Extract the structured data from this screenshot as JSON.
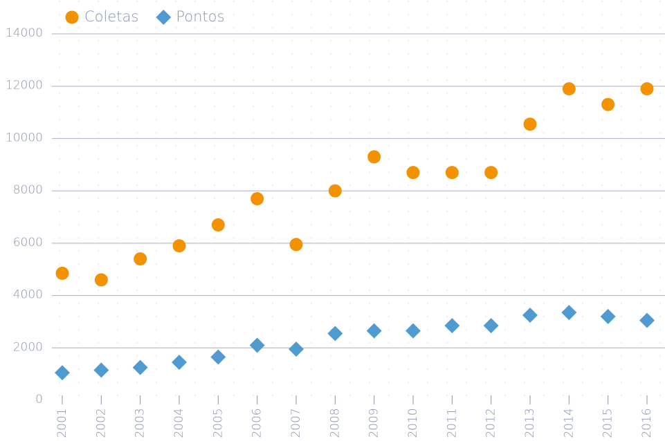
{
  "chart_data": {
    "type": "scatter",
    "categories": [
      "2001",
      "2002",
      "2003",
      "2004",
      "2005",
      "2006",
      "2007",
      "2008",
      "2009",
      "2010",
      "2011",
      "2012",
      "2013",
      "2014",
      "2015",
      "2016"
    ],
    "series": [
      {
        "name": "Coletas",
        "color": "#f39200",
        "marker": "circle",
        "values": [
          4850,
          4600,
          5400,
          5900,
          6700,
          7700,
          5950,
          8000,
          9300,
          8700,
          8700,
          8700,
          10550,
          11900,
          11300,
          11900
        ]
      },
      {
        "name": "Pontos",
        "color": "#4f9bd1",
        "marker": "diamond",
        "values": [
          1050,
          1150,
          1250,
          1450,
          1650,
          2100,
          1950,
          2550,
          2650,
          2650,
          2850,
          2850,
          3250,
          3350,
          3200,
          3050
        ]
      }
    ],
    "ylim": [
      0,
      14000
    ],
    "yticks": [
      0,
      2000,
      4000,
      6000,
      8000,
      10000,
      12000,
      14000
    ],
    "grid": true,
    "legend": "top-left"
  }
}
